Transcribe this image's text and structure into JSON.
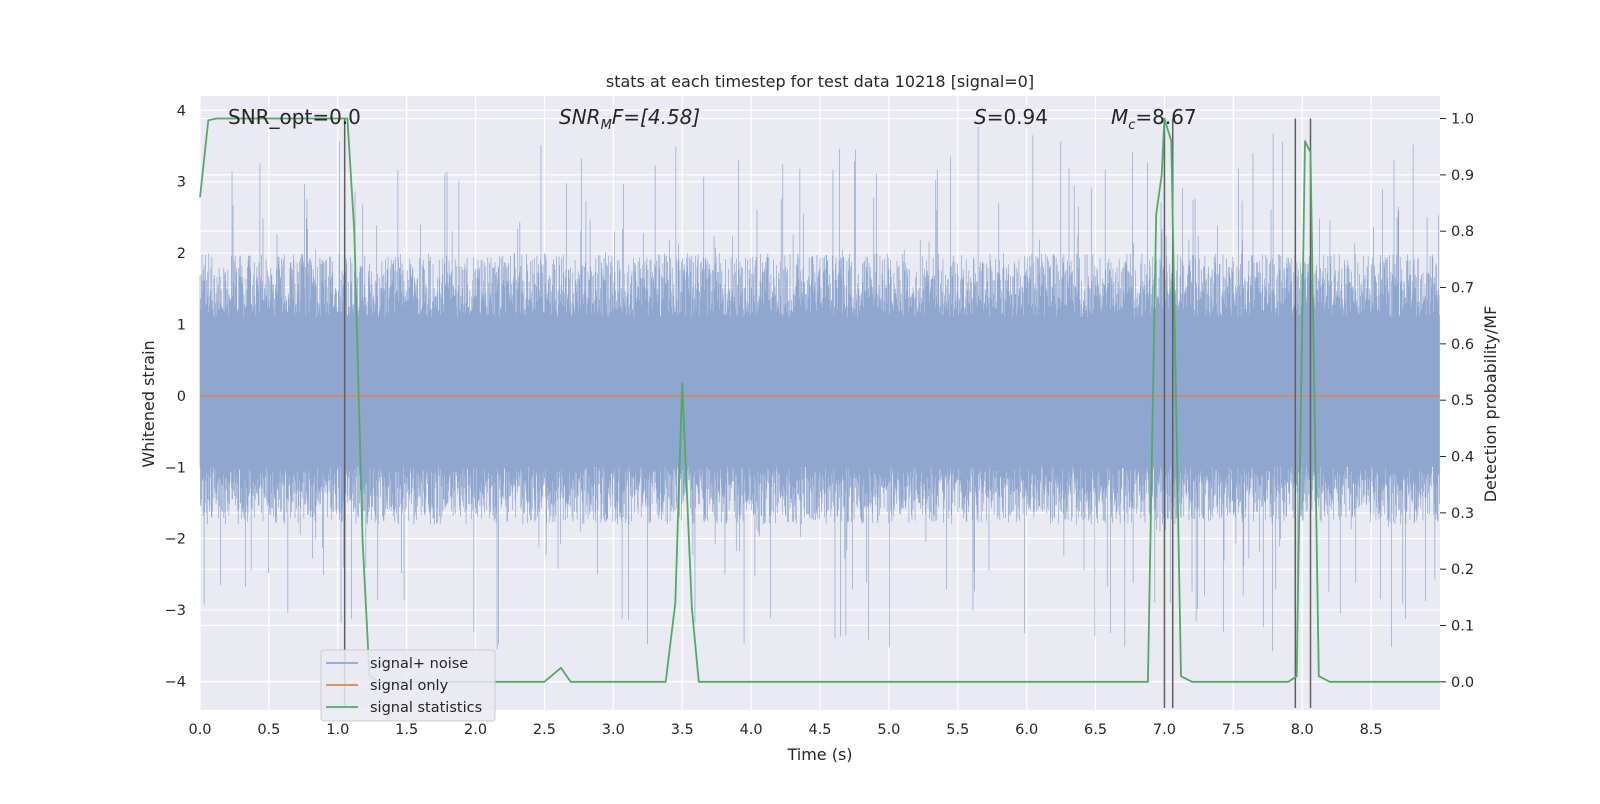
{
  "chart_data": {
    "type": "line",
    "title": "stats at each timestep for test data 10218 [signal=0]",
    "xlabel": "Time (s)",
    "ylabel": "Whitened strain",
    "y2label": "Detection probability/MF",
    "xlim": [
      0.0,
      9.0
    ],
    "ylim": [
      -4.4,
      4.2
    ],
    "y2lim": [
      -0.05,
      1.04
    ],
    "xticks": [
      "0.0",
      "0.5",
      "1.0",
      "1.5",
      "2.0",
      "2.5",
      "3.0",
      "3.5",
      "4.0",
      "4.5",
      "5.0",
      "5.5",
      "6.0",
      "6.5",
      "7.0",
      "7.5",
      "8.0",
      "8.5"
    ],
    "yticks": [
      "4",
      "3",
      "2",
      "1",
      "0",
      "−1",
      "−2",
      "−3",
      "−4"
    ],
    "y2ticks": [
      "1.0",
      "0.9",
      "0.8",
      "0.7",
      "0.6",
      "0.5",
      "0.4",
      "0.3",
      "0.2",
      "0.1",
      "0.0"
    ],
    "grid": true,
    "legend_position": "lower-left",
    "annotations": {
      "snr_opt": "SNR_opt=0.0",
      "snr_mf_prefix": "SNR",
      "snr_mf_sub": "M",
      "snr_mf_suffix": "F=[4.58]",
      "s_var": "S",
      "s_value": "=0.94",
      "mc_var": "M",
      "mc_sub": "c",
      "mc_value": "=8.67"
    },
    "series": [
      {
        "name": "signal+ noise",
        "color": "#8fa6cf",
        "axis": "left",
        "description_envelope": {
          "typical_range": [
            -1.8,
            2.0
          ],
          "max": 3.85,
          "min": -3.8
        }
      },
      {
        "name": "signal only",
        "color": "#dd8452",
        "axis": "left",
        "x": [
          0.0,
          9.0
        ],
        "y": [
          0.0,
          0.0
        ]
      },
      {
        "name": "signal statistics",
        "color": "#55a868",
        "axis": "right",
        "x": [
          0.0,
          0.06,
          0.12,
          0.58,
          0.6,
          1.04,
          1.07,
          1.12,
          1.18,
          1.23,
          1.3,
          2.5,
          2.62,
          2.69,
          3.38,
          3.45,
          3.5,
          3.57,
          3.62,
          6.88,
          6.94,
          6.98,
          7.0,
          7.05,
          7.12,
          7.2,
          7.9,
          7.96,
          8.02,
          8.06,
          8.12,
          8.2,
          9.0
        ],
        "y": [
          0.86,
          0.997,
          1.0,
          1.0,
          1.0,
          1.0,
          1.0,
          0.8,
          0.25,
          0.01,
          0.0,
          0.0,
          0.025,
          0.0,
          0.0,
          0.14,
          0.53,
          0.13,
          0.0,
          0.0,
          0.83,
          0.9,
          1.0,
          0.96,
          0.01,
          0.0,
          0.0,
          0.01,
          0.96,
          0.94,
          0.01,
          0.0,
          0.0
        ]
      }
    ],
    "vertical_markers": [
      1.05,
      7.0,
      7.06,
      7.95,
      8.06
    ],
    "marker_color": "#5f5f5f"
  }
}
